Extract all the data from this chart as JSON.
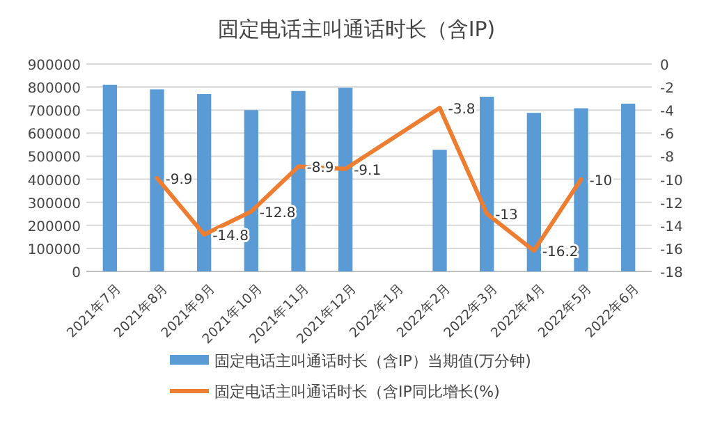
{
  "chart_data": {
    "type": "bar",
    "title": "固定电话主叫通话时长（含IP)",
    "categories": [
      "2021年7月",
      "2021年8月",
      "2021年9月",
      "2021年10月",
      "2021年11月",
      "2021年12月",
      "2022年1月",
      "2022年2月",
      "2022年3月",
      "2022年4月",
      "2022年5月",
      "2022年6月"
    ],
    "series": [
      {
        "name": "固定电话主叫通话时长（含IP）当期值(万分钟)",
        "color": "#5b9bd5",
        "values": [
          810000,
          790000,
          770000,
          700000,
          783000,
          797000,
          null,
          528000,
          758000,
          688000,
          708000,
          728000
        ]
      },
      {
        "name": "固定电话主叫通话时长（含IP同比增长(%)",
        "type": "line",
        "axis": "y2",
        "color": "#ed7d31",
        "values": [
          null,
          -9.9,
          -14.8,
          -12.8,
          -8.9,
          -9.1,
          null,
          -3.8,
          -13,
          -16.2,
          -10,
          null
        ],
        "value_labels": [
          null,
          "-9.9",
          "-14.8",
          "-12.8",
          "-8.9",
          "-9.1",
          null,
          "-3.8",
          "-13",
          "-16.2",
          "-10",
          null
        ]
      }
    ],
    "ylim": [
      0,
      900000
    ],
    "yticks": [
      0,
      100000,
      200000,
      300000,
      400000,
      500000,
      600000,
      700000,
      800000,
      900000
    ],
    "y2lim": [
      -18,
      0
    ],
    "y2ticks": [
      -18,
      -16,
      -14,
      -12,
      -10,
      -8,
      -6,
      -4,
      -2,
      0
    ],
    "grid": "y",
    "legend": "bottom"
  }
}
